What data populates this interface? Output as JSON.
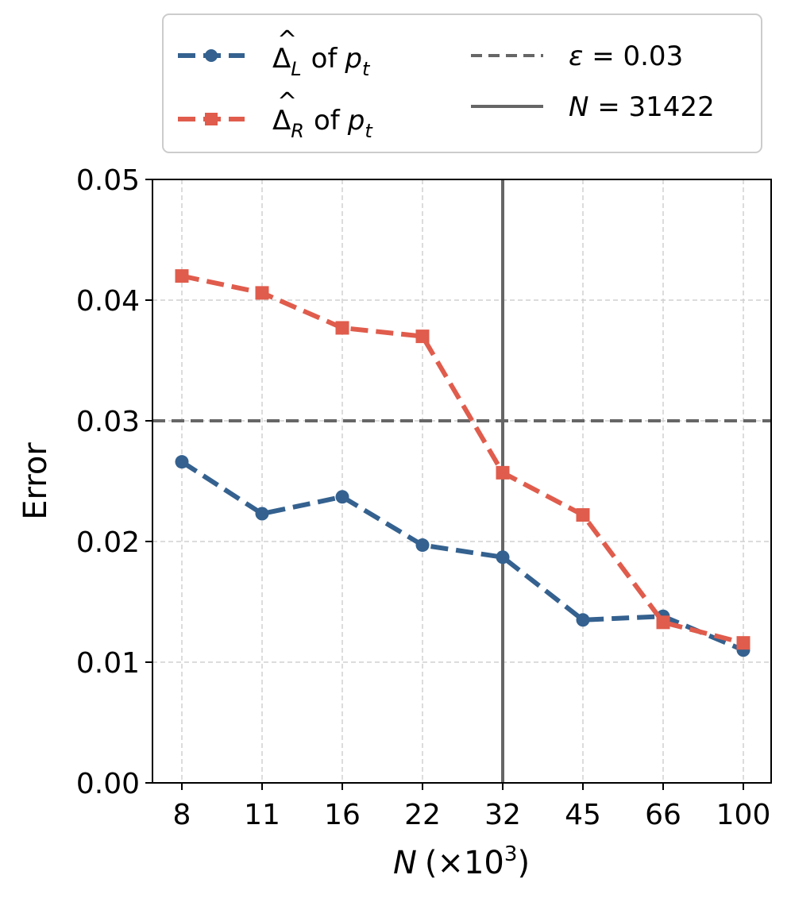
{
  "chart_data": {
    "type": "line",
    "title": "",
    "xlabel": "N (×10³)",
    "xlabel_parts": {
      "var": "N",
      "open": "(×10",
      "sup": "3",
      "close": ")"
    },
    "ylabel": "Error",
    "categories": [
      "8",
      "11",
      "16",
      "22",
      "32",
      "45",
      "66",
      "100"
    ],
    "y_ticks": [
      "0.00",
      "0.01",
      "0.02",
      "0.03",
      "0.04",
      "0.05"
    ],
    "ylim": [
      0,
      0.05
    ],
    "grid": true,
    "series": [
      {
        "name": "Δ̂_L of p_t",
        "color": "#34618f",
        "marker": "circle",
        "linestyle": "dashed",
        "values": [
          0.0266,
          0.0223,
          0.0237,
          0.0197,
          0.0187,
          0.0135,
          0.0138,
          0.011
        ]
      },
      {
        "name": "Δ̂_R of p_t",
        "color": "#e05c4c",
        "marker": "square",
        "linestyle": "dashed",
        "values": [
          0.042,
          0.0406,
          0.0377,
          0.037,
          0.0257,
          0.0222,
          0.0133,
          0.0116
        ]
      }
    ],
    "reference_lines": {
      "horizontal": {
        "label": "ε = 0.03",
        "value": 0.03,
        "color": "#666666",
        "linestyle": "dashed"
      },
      "vertical": {
        "label": "N = 31422",
        "category_index": 4,
        "color": "#666666",
        "linestyle": "solid"
      }
    },
    "legend": {
      "placement": "top",
      "entries": [
        {
          "key": "seriesL",
          "delta": "Δ",
          "sub": "L",
          "of": "of",
          "p": "p",
          "psub": "t"
        },
        {
          "key": "seriesR",
          "delta": "Δ",
          "sub": "R",
          "of": "of",
          "p": "p",
          "psub": "t"
        },
        {
          "key": "hline",
          "text_var": "ε",
          "text_rest": " = 0.03"
        },
        {
          "key": "vline",
          "text_var": "N",
          "text_rest": " = 31422"
        }
      ]
    }
  }
}
